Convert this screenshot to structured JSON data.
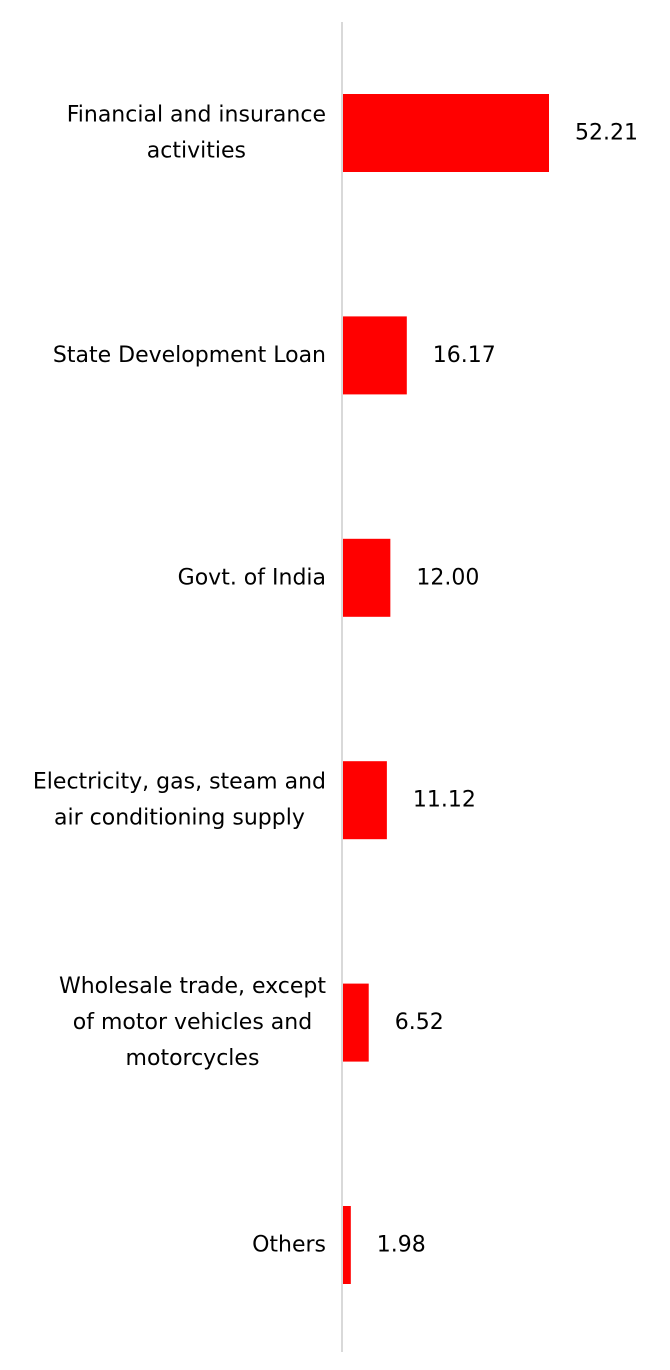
{
  "chart_data": {
    "type": "bar",
    "orientation": "horizontal",
    "categories": [
      [
        "Financial and insurance",
        "activities"
      ],
      [
        "State Development Loan"
      ],
      [
        "Govt. of India"
      ],
      [
        "Electricity, gas, steam and",
        "air conditioning supply"
      ],
      [
        "Wholesale trade, except",
        "of motor vehicles and",
        "motorcycles"
      ],
      [
        "Others"
      ]
    ],
    "values": [
      52.21,
      16.17,
      12.0,
      11.12,
      6.52,
      1.98
    ],
    "value_labels": [
      "52.21",
      "16.17",
      "12.00",
      "11.12",
      "6.52",
      "1.98"
    ],
    "bar_color": "#ff0000",
    "axis_color": "#d9d9d9",
    "title": "",
    "xlabel": "",
    "ylabel": "",
    "grid": false,
    "legend": "none"
  }
}
